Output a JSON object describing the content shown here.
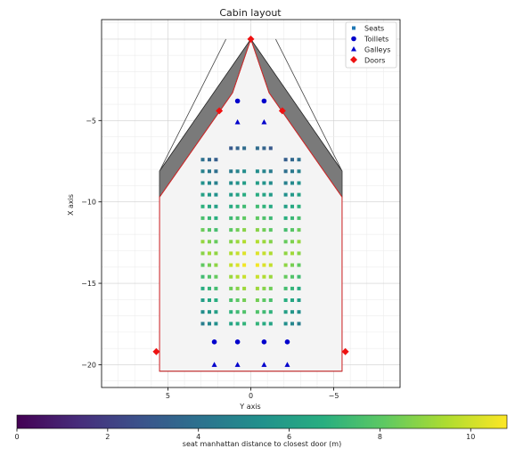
{
  "chart_data": {
    "type": "scatter",
    "title": "Cabin layout",
    "xlabel": "Y axis",
    "ylabel": "X axis",
    "x_inverted": true,
    "xlim": [
      9,
      -9
    ],
    "ylim": [
      -21.4,
      1.2
    ],
    "xticks": [
      5,
      0,
      -5
    ],
    "xtick_labels": [
      "5",
      "0",
      "−5"
    ],
    "yticks": [
      -5,
      -10,
      -15,
      -20
    ],
    "ytick_labels": [
      "−5",
      "−10",
      "−15",
      "−20"
    ],
    "grid": true,
    "legend_position": "top-right",
    "legend": [
      {
        "label": "Seats",
        "marker": "square",
        "color": "#1f77b4"
      },
      {
        "label": "Toillets",
        "marker": "circle",
        "color": "#0000cc"
      },
      {
        "label": "Galleys",
        "marker": "triangle",
        "color": "#0000cc"
      },
      {
        "label": "Doors",
        "marker": "diamond",
        "color": "#ee1111"
      }
    ],
    "fuselage_outline": [
      [
        1.5,
        0
      ],
      [
        5.5,
        -8.1
      ],
      [
        5.5,
        -9.7
      ],
      [
        5.5,
        -20.4
      ],
      [
        -5.5,
        -20.4
      ],
      [
        -5.5,
        -9.7
      ],
      [
        -5.5,
        -8.1
      ],
      [
        -1.5,
        0
      ]
    ],
    "cabin_outline": [
      [
        0,
        0
      ],
      [
        1.1,
        -3.3
      ],
      [
        5.5,
        -9.7
      ],
      [
        5.5,
        -20.4
      ],
      [
        -5.5,
        -20.4
      ],
      [
        -5.5,
        -9.7
      ],
      [
        -1.1,
        -3.3
      ]
    ],
    "nose_gray_regions": [
      [
        [
          0,
          0
        ],
        [
          5.5,
          -8.1
        ],
        [
          5.5,
          -9.7
        ],
        [
          1.1,
          -3.3
        ]
      ],
      [
        [
          0,
          0
        ],
        [
          -5.5,
          -8.1
        ],
        [
          -5.5,
          -9.7
        ],
        [
          -1.1,
          -3.3
        ]
      ]
    ],
    "seats": {
      "columns": [
        2.9,
        2.5,
        2.1,
        1.2,
        0.8,
        0.4,
        -0.4,
        -0.8,
        -1.2,
        -2.1,
        -2.5,
        -2.9
      ],
      "first_row_x": -7.4,
      "first_row_x_center_columns": -6.7,
      "row_spacing": 0.72,
      "rows": 15
    },
    "toilets": [
      {
        "y": 0.8,
        "x": -3.8
      },
      {
        "y": -0.8,
        "x": -3.8
      },
      {
        "y": 2.2,
        "x": -18.6
      },
      {
        "y": 0.8,
        "x": -18.6
      },
      {
        "y": -0.8,
        "x": -18.6
      },
      {
        "y": -2.2,
        "x": -18.6
      }
    ],
    "galleys": [
      {
        "y": 0.8,
        "x": -5.1
      },
      {
        "y": -0.8,
        "x": -5.1
      },
      {
        "y": 2.2,
        "x": -20.0
      },
      {
        "y": 0.8,
        "x": -20.0
      },
      {
        "y": -0.8,
        "x": -20.0
      },
      {
        "y": -2.2,
        "x": -20.0
      }
    ],
    "doors": [
      {
        "y": 0,
        "x": 0
      },
      {
        "y": 1.9,
        "x": -4.4
      },
      {
        "y": -1.9,
        "x": -4.4
      },
      {
        "y": 5.7,
        "x": -19.2
      },
      {
        "y": -5.7,
        "x": -19.2
      }
    ],
    "colorbar": {
      "label": "seat manhattan distance to closest door (m)",
      "colormap": "viridis",
      "range": [
        0,
        10.8
      ],
      "ticks": [
        0,
        2,
        4,
        6,
        8,
        10
      ],
      "tick_labels": [
        "0",
        "2",
        "4",
        "6",
        "8",
        "10"
      ]
    }
  }
}
